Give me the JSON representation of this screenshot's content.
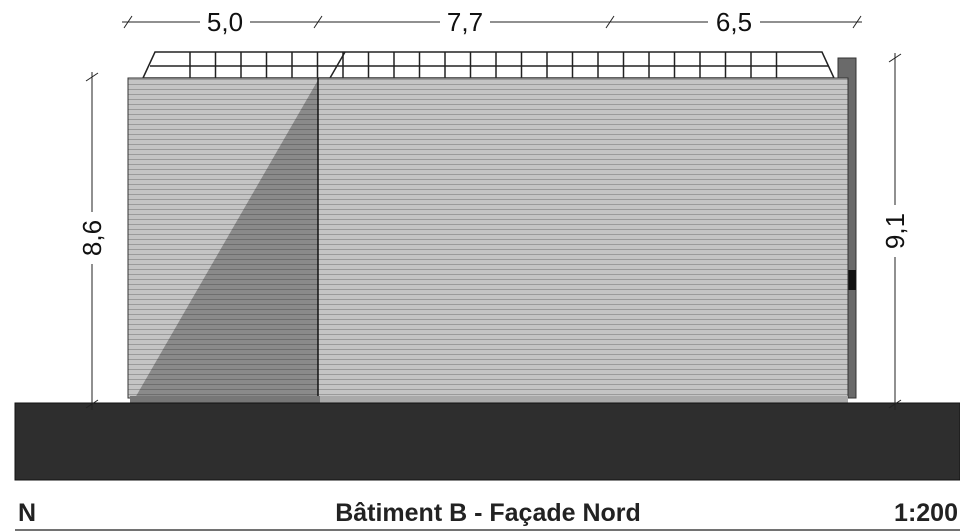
{
  "dimensions": {
    "top": [
      "5,0",
      "7,7",
      "6,5"
    ],
    "left": "8,6",
    "right": "9,1"
  },
  "footer": {
    "orientation": "N",
    "title": "Bâtiment B - Façade Nord",
    "scale": "1:200"
  }
}
